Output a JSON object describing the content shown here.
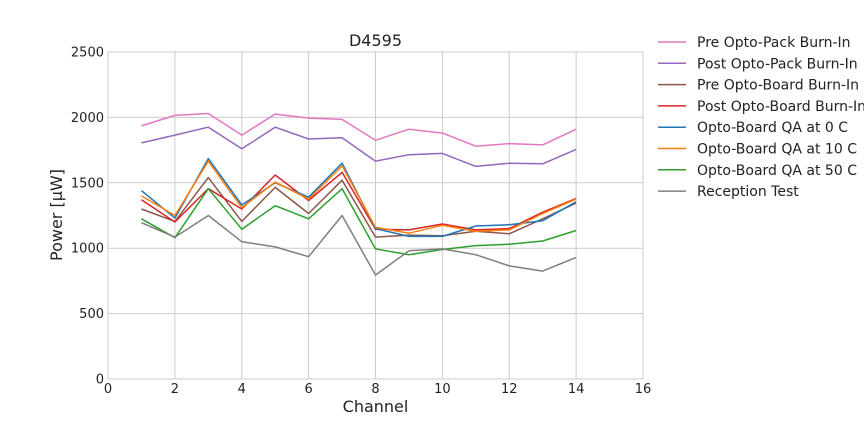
{
  "chart_data": {
    "type": "line",
    "title": "D4595",
    "xlabel": "Channel",
    "ylabel": "Power [μW]",
    "xlim": [
      0,
      16
    ],
    "ylim": [
      0,
      2500
    ],
    "xticks": [
      "0",
      "2",
      "4",
      "6",
      "8",
      "10",
      "12",
      "14",
      "16"
    ],
    "yticks": [
      "0",
      "500",
      "1000",
      "1500",
      "2000",
      "2500"
    ],
    "grid": true,
    "legend_position": "outside-right",
    "x": [
      1,
      2,
      3,
      4,
      5,
      6,
      7,
      8,
      9,
      10,
      11,
      12,
      13,
      14
    ],
    "series": [
      {
        "name": "Pre Opto-Pack Burn-In",
        "color": "#e377c2",
        "values": [
          1935,
          2015,
          2030,
          1865,
          2025,
          1995,
          1985,
          1825,
          1910,
          1880,
          1780,
          1800,
          1790,
          1910
        ]
      },
      {
        "name": "Post Opto-Pack Burn-In",
        "color": "#9467bd",
        "values": [
          1805,
          1865,
          1925,
          1760,
          1925,
          1835,
          1845,
          1665,
          1715,
          1725,
          1625,
          1650,
          1645,
          1755
        ]
      },
      {
        "name": "Pre Opto-Board Burn-In",
        "color": "#8c564b",
        "values": [
          1300,
          1205,
          1540,
          1205,
          1465,
          1265,
          1520,
          1085,
          1100,
          1095,
          1130,
          1110,
          1225,
          1345
        ]
      },
      {
        "name": "Post Opto-Board Burn-In",
        "color": "#d62728",
        "values": [
          1370,
          1200,
          1455,
          1300,
          1560,
          1365,
          1580,
          1145,
          1140,
          1185,
          1140,
          1150,
          1275,
          1380
        ]
      },
      {
        "name": "Opto-Board QA at 0 C",
        "color": "#1f77b4",
        "values": [
          1440,
          1230,
          1685,
          1330,
          1500,
          1390,
          1650,
          1150,
          1090,
          1090,
          1170,
          1180,
          1210,
          1355
        ]
      },
      {
        "name": "Opto-Board QA at 10 C",
        "color": "#ff7f0e",
        "values": [
          1400,
          1250,
          1665,
          1310,
          1505,
          1375,
          1630,
          1160,
          1115,
          1175,
          1130,
          1140,
          1265,
          1375
        ]
      },
      {
        "name": "Opto-Board QA at 50 C",
        "color": "#2ca02c",
        "values": [
          1225,
          1080,
          1455,
          1145,
          1325,
          1225,
          1455,
          995,
          950,
          990,
          1020,
          1030,
          1055,
          1135
        ]
      },
      {
        "name": "Reception Test",
        "color": "#7f7f7f",
        "values": [
          1195,
          1085,
          1250,
          1050,
          1010,
          935,
          1250,
          795,
          980,
          995,
          950,
          865,
          825,
          930
        ]
      }
    ]
  }
}
